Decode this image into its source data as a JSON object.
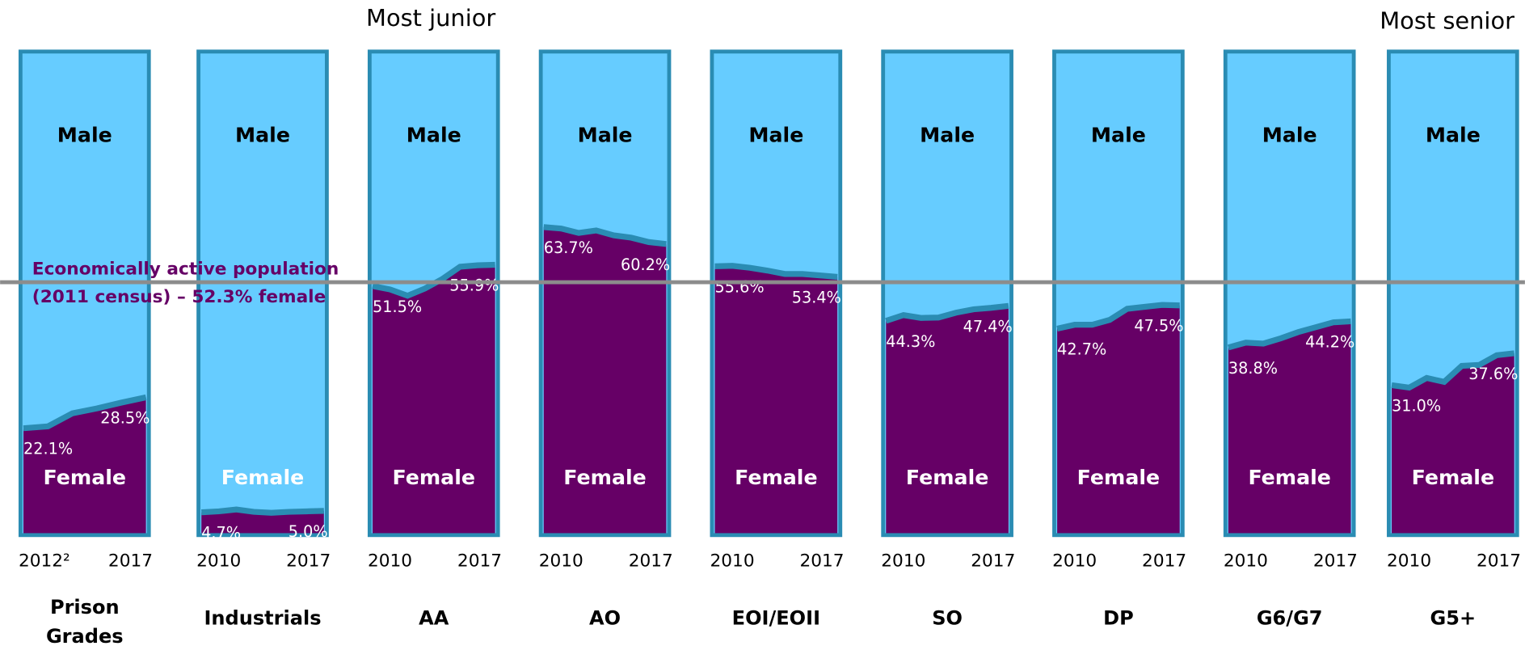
{
  "chart_data": {
    "type": "small-multiple-area",
    "headers": [
      "Most junior",
      "Most senior"
    ],
    "area_labels": {
      "upper": "Male",
      "lower": "Female"
    },
    "colors": {
      "upper": "#66ccff",
      "lower": "#660066",
      "border": "#2a8cb3",
      "reference": "#8c8c8c",
      "annotation": "#660066"
    },
    "ylim": [
      0,
      100
    ],
    "reference": {
      "value": 52.3,
      "label": [
        "Economically active population",
        "(2011 census) – 52.3% female"
      ]
    },
    "panels": [
      {
        "name": [
          "Prison",
          "Grades"
        ],
        "x": [
          2012,
          2013,
          2014,
          2015,
          2016,
          2017
        ],
        "xticks": [
          {
            "value": 2012,
            "label": "2012²"
          },
          2017
        ],
        "values": [
          22.1,
          22.5,
          25.2,
          26.2,
          27.4,
          28.5
        ],
        "value_labels": [
          "22.1%",
          null,
          null,
          null,
          null,
          "28.5%"
        ]
      },
      {
        "name": [
          "Industrials"
        ],
        "x": [
          2010,
          2011,
          2012,
          2013,
          2014,
          2015,
          2016,
          2017
        ],
        "xticks": [
          2010,
          2017
        ],
        "values": [
          4.7,
          4.9,
          5.3,
          4.8,
          4.6,
          4.8,
          4.9,
          5.0
        ],
        "value_labels": [
          "4.7%",
          null,
          null,
          null,
          null,
          null,
          null,
          "5.0%"
        ]
      },
      {
        "name": [
          "AA"
        ],
        "x": [
          2010,
          2011,
          2012,
          2013,
          2014,
          2015,
          2016,
          2017
        ],
        "xticks": [
          2010,
          2017
        ],
        "values": [
          51.5,
          50.8,
          49.5,
          51.0,
          53.0,
          55.5,
          55.8,
          55.9
        ],
        "value_labels": [
          "51.5%",
          null,
          null,
          null,
          null,
          null,
          null,
          "55.9%"
        ]
      },
      {
        "name": [
          "AO"
        ],
        "x": [
          2010,
          2011,
          2012,
          2013,
          2014,
          2015,
          2016,
          2017
        ],
        "xticks": [
          2010,
          2017
        ],
        "values": [
          63.7,
          63.4,
          62.5,
          63.0,
          62.0,
          61.5,
          60.6,
          60.2
        ],
        "value_labels": [
          "63.7%",
          null,
          null,
          null,
          null,
          null,
          null,
          "60.2%"
        ]
      },
      {
        "name": [
          "EOI/EOII"
        ],
        "x": [
          2010,
          2011,
          2012,
          2013,
          2014,
          2015,
          2016,
          2017
        ],
        "xticks": [
          2010,
          2017
        ],
        "values": [
          55.6,
          55.7,
          55.3,
          54.7,
          54.0,
          54.0,
          53.7,
          53.4
        ],
        "value_labels": [
          "55.6%",
          null,
          null,
          null,
          null,
          null,
          null,
          "53.4%"
        ]
      },
      {
        "name": [
          "SO"
        ],
        "x": [
          2010,
          2011,
          2012,
          2013,
          2014,
          2015,
          2016,
          2017
        ],
        "xticks": [
          2010,
          2017
        ],
        "values": [
          44.3,
          45.5,
          44.9,
          45.0,
          46.0,
          46.7,
          47.0,
          47.4
        ],
        "value_labels": [
          "44.3%",
          null,
          null,
          null,
          null,
          null,
          null,
          "47.4%"
        ]
      },
      {
        "name": [
          "DP"
        ],
        "x": [
          2010,
          2011,
          2012,
          2013,
          2014,
          2015,
          2016,
          2017
        ],
        "xticks": [
          2010,
          2017
        ],
        "values": [
          42.7,
          43.5,
          43.5,
          44.5,
          46.8,
          47.2,
          47.6,
          47.5
        ],
        "value_labels": [
          "42.7%",
          null,
          null,
          null,
          null,
          null,
          null,
          "47.5%"
        ]
      },
      {
        "name": [
          "G6/G7"
        ],
        "x": [
          2010,
          2011,
          2012,
          2013,
          2014,
          2015,
          2016,
          2017
        ],
        "xticks": [
          2010,
          2017
        ],
        "values": [
          38.8,
          39.8,
          39.6,
          40.7,
          42.0,
          43.0,
          44.0,
          44.2
        ],
        "value_labels": [
          "38.8%",
          null,
          null,
          null,
          null,
          null,
          null,
          "44.2%"
        ]
      },
      {
        "name": [
          "G5+"
        ],
        "x": [
          2010,
          2011,
          2012,
          2013,
          2014,
          2015,
          2016,
          2017
        ],
        "xticks": [
          2010,
          2017
        ],
        "values": [
          31.0,
          30.5,
          32.5,
          31.7,
          35.0,
          35.2,
          37.2,
          37.6
        ],
        "value_labels": [
          "31.0%",
          null,
          null,
          null,
          null,
          null,
          null,
          "37.6%"
        ]
      }
    ]
  }
}
